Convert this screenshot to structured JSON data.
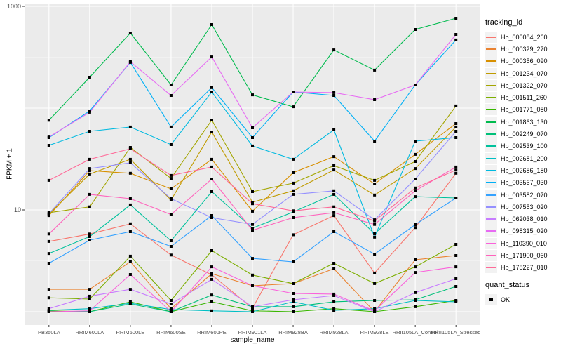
{
  "figure": {
    "background": "#FFFFFF",
    "panel_background": "#EBEBEB",
    "grid_color": "#FFFFFF",
    "axis_text_color": "#4D4D4D",
    "point_color": "#000000"
  },
  "x_axis": {
    "title": "sample_name"
  },
  "y_axis": {
    "title": "FPKM + 1",
    "labeled_breaks": [
      1000,
      10
    ]
  },
  "legend": {
    "tracking_title": "tracking_id",
    "quant_title": "quant_status",
    "quant_items": [
      {
        "label": "OK",
        "shape": "filled-square"
      }
    ]
  },
  "chart_data": {
    "type": "line",
    "title": "",
    "xlabel": "sample_name",
    "ylabel": "FPKM + 1",
    "y_scale": "log10",
    "ylim": [
      0.72,
      980
    ],
    "y_gridlines": [
      1,
      10,
      100,
      1000
    ],
    "y_labeled_breaks": [
      1000,
      10
    ],
    "grid": true,
    "legend_position": "right",
    "point_shape": "square",
    "point_color": "#000000",
    "quant_status": "OK",
    "x_categories": [
      "PB350LA",
      "RRIM600LA",
      "RRIM600LE",
      "RRIM600SE",
      "RRIM600PE",
      "RRIM901LA",
      "RRIM928BA",
      "RRIM928LA",
      "RRIM928LE",
      "RRII105LA_Control",
      "RRII105LA_Stressed"
    ],
    "series": [
      {
        "name": "Hb_000084_260",
        "color": "#F8766D",
        "values": [
          4.9,
          5.8,
          7.3,
          3.6,
          2.3,
          1.08,
          5.7,
          8.8,
          2.4,
          6.7,
          22.9
        ]
      },
      {
        "name": "Hb_000329_270",
        "color": "#EA8331",
        "values": [
          1.66,
          1.66,
          3.1,
          1.07,
          2.36,
          1.8,
          1.89,
          2.64,
          1.0,
          3.24,
          3.56
        ]
      },
      {
        "name": "Hb_000356_090",
        "color": "#D89000",
        "values": [
          8.8,
          24.3,
          22.9,
          16.1,
          31.4,
          9.7,
          23.2,
          33.4,
          18.0,
          35.1,
          70.5
        ]
      },
      {
        "name": "Hb_001234_070",
        "color": "#C09B00",
        "values": [
          9.1,
          22.5,
          31.4,
          12.5,
          58.3,
          11.9,
          15.4,
          24.7,
          14.0,
          25.5,
          65.2
        ]
      },
      {
        "name": "Hb_001322_070",
        "color": "#A3A500",
        "values": [
          9.4,
          10.7,
          41.1,
          20.4,
          76.4,
          15.1,
          18.3,
          27.2,
          19.5,
          29.9,
          105
        ]
      },
      {
        "name": "Hb_001511_260",
        "color": "#7CAE00",
        "values": [
          1.37,
          1.33,
          3.51,
          1.29,
          3.98,
          2.29,
          1.89,
          2.99,
          1.89,
          2.76,
          4.59
        ]
      },
      {
        "name": "Hb_001771_080",
        "color": "#39B600",
        "values": [
          1.02,
          1.0,
          1.25,
          1.0,
          1.25,
          1.02,
          1.0,
          1.07,
          1.0,
          1.12,
          1.29
        ]
      },
      {
        "name": "Hb_001863_130",
        "color": "#00BB4E",
        "values": [
          76,
          201,
          547,
          169,
          662,
          135,
          103,
          373,
          236,
          592,
          764
        ]
      },
      {
        "name": "Hb_002249_070",
        "color": "#00C079",
        "values": [
          1.0,
          1.0,
          1.19,
          1.0,
          1.46,
          1.12,
          1.12,
          1.25,
          1.29,
          1.31,
          1.77
        ]
      },
      {
        "name": "Hb_002539_100",
        "color": "#00C19C",
        "values": [
          3.73,
          5.47,
          11.2,
          4.97,
          15.1,
          6.62,
          9.53,
          14.2,
          5.83,
          13.5,
          13.1
        ]
      },
      {
        "name": "Hb_002681_200",
        "color": "#00BFC4",
        "values": [
          1.03,
          1.07,
          1.21,
          1.05,
          1.02,
          1.0,
          1.25,
          1.03,
          1.07,
          1.29,
          1.25
        ]
      },
      {
        "name": "Hb_002686_180",
        "color": "#00BAE0",
        "values": [
          43.1,
          59.2,
          65.2,
          43.8,
          144,
          42.5,
          31.4,
          61.1,
          5.4,
          47.4,
          51.3
        ]
      },
      {
        "name": "Hb_003567_030",
        "color": "#00B0F6",
        "values": [
          51.3,
          93.8,
          281,
          65.2,
          159,
          51.3,
          144,
          133,
          47.4,
          169,
          467
        ]
      },
      {
        "name": "Hb_003582_070",
        "color": "#35A2FF",
        "values": [
          2.99,
          5.05,
          6.11,
          4.38,
          8.81,
          3.34,
          3.09,
          6.11,
          3.68,
          7.16,
          13.1
        ]
      },
      {
        "name": "Hb_007553_020",
        "color": "#9590FF",
        "values": [
          9.2,
          25.5,
          29.0,
          12.9,
          8.4,
          7.2,
          14.2,
          15.4,
          8.0,
          20.1,
          59.2
        ]
      },
      {
        "name": "Hb_062038_010",
        "color": "#C77CFF",
        "values": [
          1.07,
          1.42,
          1.66,
          1.19,
          2.08,
          1.12,
          1.31,
          1.44,
          1.0,
          1.54,
          2.11
        ]
      },
      {
        "name": "Hb_098315_020",
        "color": "#E76BF3",
        "values": [
          52.1,
          91,
          285,
          133,
          318,
          64.1,
          144,
          142,
          121,
          169,
          530
        ]
      },
      {
        "name": "Hb_110390_010",
        "color": "#FA62DB",
        "values": [
          1.0,
          1.02,
          2.32,
          1.0,
          2.76,
          1.8,
          1.51,
          1.49,
          1.02,
          2.43,
          2.76
        ]
      },
      {
        "name": "Hb_171900_060",
        "color": "#FF62BC",
        "values": [
          5.8,
          14.2,
          12.9,
          9.0,
          20.1,
          6.3,
          8.4,
          9.4,
          7.2,
          15.4,
          26.4
        ]
      },
      {
        "name": "Hb_178227_010",
        "color": "#FF6A98",
        "values": [
          19.5,
          31.4,
          39.8,
          21.8,
          26.4,
          11.5,
          9.8,
          10.7,
          7.8,
          16.4,
          24.7
        ]
      }
    ]
  }
}
